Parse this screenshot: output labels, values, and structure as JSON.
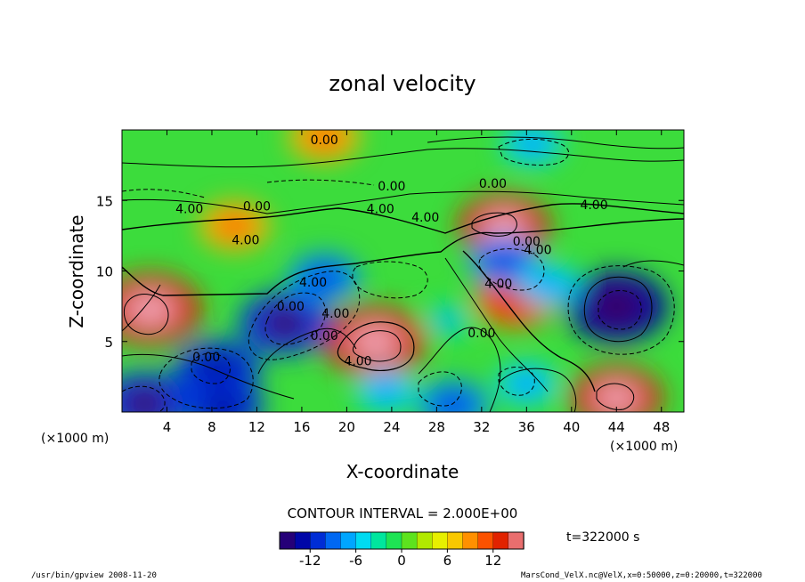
{
  "chart_data": {
    "type": "heatmap",
    "title": "zonal velocity",
    "xlabel": "X-coordinate",
    "ylabel": "Z-coordinate",
    "x_unit": "(×1000 m)",
    "z_unit": "(×1000 m)",
    "xlim": [
      0,
      50
    ],
    "ylim": [
      0,
      20
    ],
    "x_ticks": [
      4,
      8,
      12,
      16,
      20,
      24,
      28,
      32,
      36,
      40,
      44,
      48
    ],
    "y_ticks": [
      5,
      10,
      15
    ],
    "contour_interval_text": "CONTOUR INTERVAL = 2.000E+00",
    "time_text": "t=322000 s",
    "colorbar": {
      "range": [
        -16,
        16
      ],
      "ticks": [
        -12,
        -6,
        0,
        6,
        12
      ],
      "colors": [
        "#3b0060",
        "#0000a0",
        "#0033dd",
        "#0088ff",
        "#00d8ff",
        "#00e890",
        "#30e030",
        "#a8e800",
        "#f0f000",
        "#ffb000",
        "#ff5a00",
        "#dd1a00",
        "#f0a0b0"
      ]
    },
    "contour_labels": [
      "0.00",
      "0.00",
      "0.00",
      "4.00",
      "4.00",
      "0.00",
      "4.00",
      "4.00",
      "4.00",
      "0.00",
      "0.00",
      "4.00",
      "4.00",
      "0.00",
      "4.00",
      "0.00",
      "4.00",
      "4.00",
      "0.00"
    ],
    "features": [
      {
        "x": 2.5,
        "z": 7.3,
        "value": 14
      },
      {
        "x": 22.5,
        "z": 5.0,
        "value": 14
      },
      {
        "x": 34.0,
        "z": 13.2,
        "value": 12
      },
      {
        "x": 35.0,
        "z": 8.0,
        "value": 10
      },
      {
        "x": 44.0,
        "z": 1.0,
        "value": 12
      },
      {
        "x": 18.0,
        "z": 19.5,
        "value": 8
      },
      {
        "x": 10.0,
        "z": 13.2,
        "value": 8
      },
      {
        "x": 44.0,
        "z": 7.5,
        "value": -14
      },
      {
        "x": 14.5,
        "z": 6.3,
        "value": -12
      },
      {
        "x": 8.5,
        "z": 3.0,
        "value": -11
      },
      {
        "x": 2.0,
        "z": 0.6,
        "value": -12
      },
      {
        "x": 9.0,
        "z": 0.4,
        "value": -10
      },
      {
        "x": 18.0,
        "z": 9.5,
        "value": -8
      },
      {
        "x": 34.0,
        "z": 10.7,
        "value": -8
      },
      {
        "x": 38.0,
        "z": 9.0,
        "value": -6
      },
      {
        "x": 36.5,
        "z": 19.0,
        "value": -6
      },
      {
        "x": 29.0,
        "z": 6.5,
        "value": -4
      },
      {
        "x": 23.5,
        "z": 1.5,
        "value": -6
      },
      {
        "x": 29.5,
        "z": 0.5,
        "value": -8
      },
      {
        "x": 36.0,
        "z": 2.0,
        "value": -6
      }
    ]
  },
  "footer": {
    "left": "/usr/bin/gpview   2008-11-20",
    "right": "MarsCond_VelX.nc@VelX,x=0:50000,z=0:20000,t=322000"
  }
}
